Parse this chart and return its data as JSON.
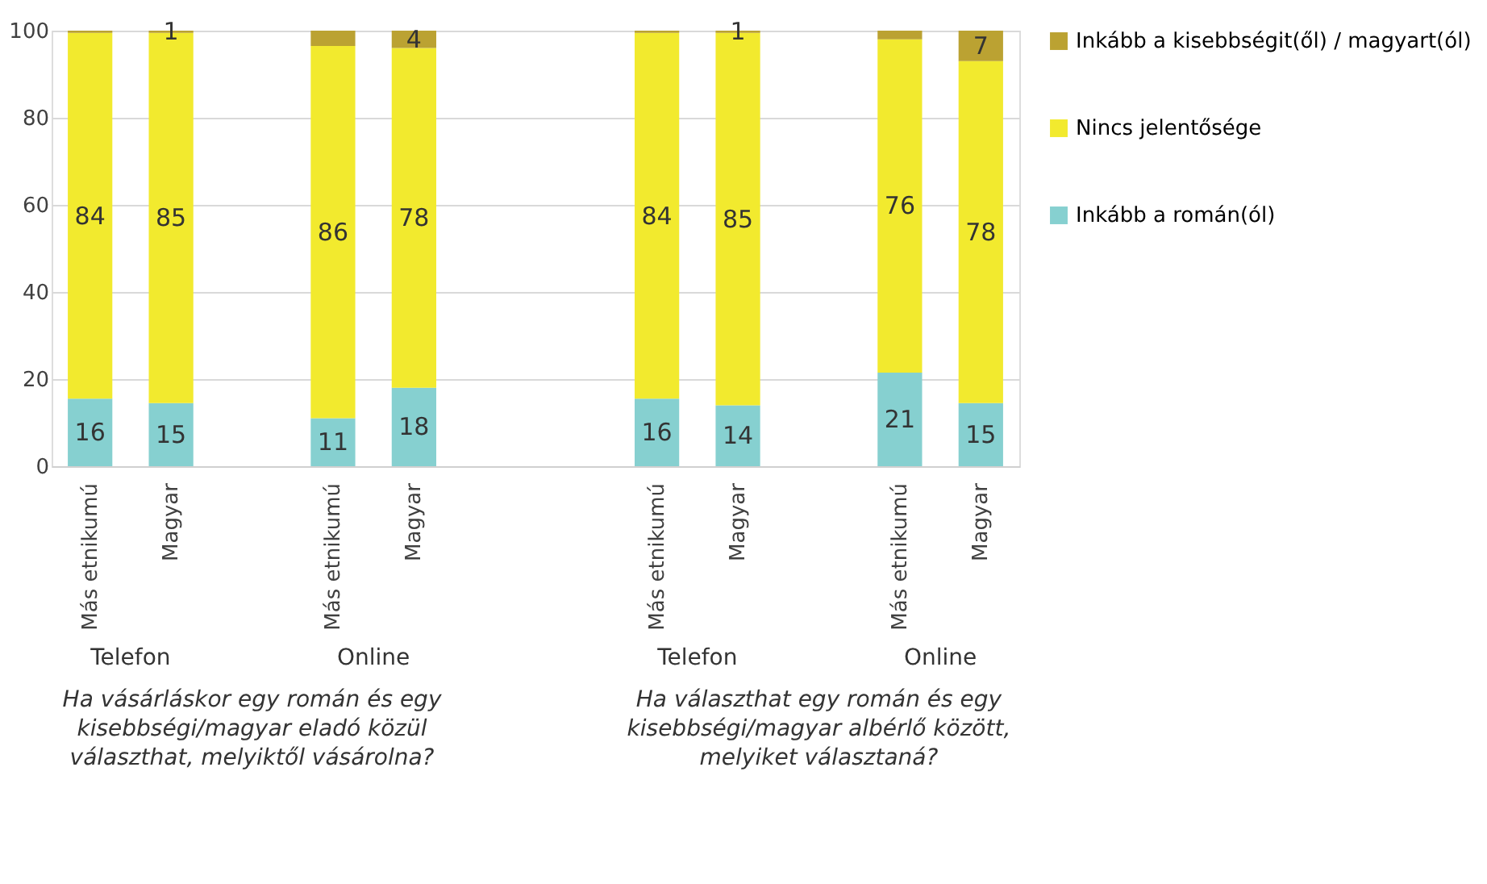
{
  "chart_data": {
    "type": "bar",
    "stacked": true,
    "categories": [
      "Más etnikumú",
      "Magyar",
      null,
      "Más etnikumú",
      "Magyar",
      null,
      null,
      "Más etnikumú",
      "Magyar",
      null,
      "Más etnikumú",
      "Magyar"
    ],
    "series": [
      {
        "name": "Inkább a román(ól)",
        "color": "#86d0d0",
        "values": [
          15.5,
          14.5,
          null,
          11,
          18,
          null,
          null,
          15.5,
          14,
          null,
          21.5,
          14.5
        ],
        "value_labels": [
          "16",
          "15",
          null,
          "11",
          "18",
          null,
          null,
          "16",
          "14",
          null,
          "21",
          "15"
        ]
      },
      {
        "name": "Nincs jelentősége",
        "color": "#f2ea2e",
        "values": [
          84,
          85,
          null,
          85.5,
          78,
          null,
          null,
          84,
          85.5,
          null,
          76.5,
          78.5
        ],
        "value_labels": [
          "84",
          "85",
          null,
          "86",
          "78",
          null,
          null,
          "84",
          "85",
          null,
          "76",
          "78"
        ]
      },
      {
        "name": "Inkább a kisebbségit(ől) / magyart(ól)",
        "color": "#bba232",
        "values": [
          0.5,
          0.5,
          null,
          3.5,
          4,
          null,
          null,
          0.5,
          0.5,
          null,
          2,
          7
        ],
        "value_labels": [
          null,
          "1",
          null,
          null,
          "4",
          null,
          null,
          null,
          "1",
          null,
          null,
          "7"
        ]
      }
    ],
    "ylim": [
      0,
      100
    ],
    "yticks": [
      0,
      20,
      40,
      60,
      80,
      100
    ],
    "grid": "y",
    "legend": "right",
    "annotations": [
      "Telefon",
      "Online",
      "Telefon",
      "Online",
      "Ha vásárláskor egy román és egy kisebbségi/magyar eladó közül választhat, melyiktől vásárolna?",
      "Ha választhat egy román és egy kisebbségi/magyar albérlő között, melyiket választaná?"
    ]
  }
}
